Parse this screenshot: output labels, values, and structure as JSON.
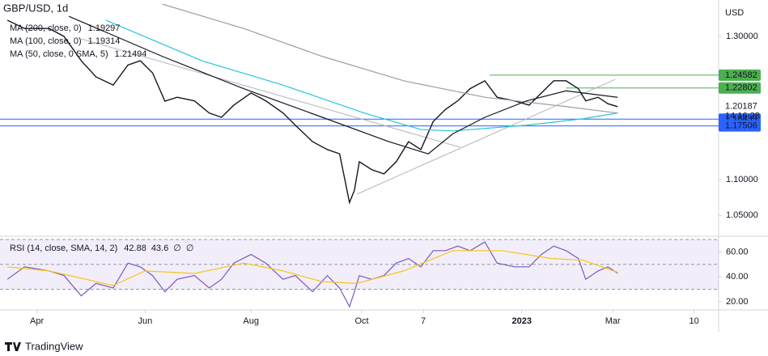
{
  "chart_data": [
    {
      "type": "line",
      "title": "GBP/USD, 1d",
      "currency": "USD",
      "time_to_close": "14:16:28",
      "xlim": [
        7,
        299
      ],
      "ylim": [
        1.0232,
        1.3508
      ],
      "yticks": [
        {
          "value": 1.3,
          "label": "1.30000"
        },
        {
          "value": 1.1,
          "label": "1.10000"
        },
        {
          "value": 1.05,
          "label": "1.05000"
        }
      ],
      "series": [
        {
          "color": "#131722",
          "x": [
            10,
            17,
            27,
            33,
            40,
            46,
            53,
            59,
            64,
            69,
            74,
            79,
            86,
            92,
            97,
            102,
            109,
            115,
            122,
            127,
            134,
            140,
            145,
            149,
            151,
            153,
            158,
            163,
            168,
            173,
            178,
            183,
            188,
            193,
            198,
            204,
            209,
            216,
            222,
            227,
            232,
            237,
            242,
            245,
            250,
            254,
            258
          ],
          "values": [
            1.3226,
            1.311,
            1.311,
            1.3,
            1.266,
            1.2435,
            1.232,
            1.26,
            1.266,
            1.249,
            1.2096,
            1.215,
            1.21,
            1.193,
            1.187,
            1.204,
            1.221,
            1.21,
            1.193,
            1.176,
            1.153,
            1.142,
            1.136,
            1.068,
            1.085,
            1.125,
            1.114,
            1.108,
            1.125,
            1.153,
            1.142,
            1.181,
            1.198,
            1.21,
            1.227,
            1.238,
            1.215,
            1.21,
            1.204,
            1.221,
            1.238,
            1.238,
            1.227,
            1.21,
            1.215,
            1.206,
            1.20187
          ]
        },
        {
          "name": "MA (200, close, 0)",
          "color": "#9e9e9e",
          "x": [
            73,
            106,
            138,
            171,
            204,
            237,
            258
          ],
          "values": [
            1.345,
            1.311,
            1.272,
            1.238,
            1.215,
            1.202,
            1.19297
          ]
        },
        {
          "name": "MA (100, close, 0)",
          "color": "#26c6da",
          "x": [
            50,
            89,
            122,
            155,
            178,
            191,
            221,
            244,
            258
          ],
          "values": [
            1.3226,
            1.266,
            1.232,
            1.193,
            1.17,
            1.168,
            1.176,
            1.185,
            1.19314
          ]
        },
        {
          "name": "MA (50, close, 0 SMA, 5)",
          "color": "#131722",
          "x": [
            35,
            73,
            106,
            138,
            165,
            181,
            191,
            204,
            221,
            237,
            258
          ],
          "values": [
            1.328,
            1.272,
            1.227,
            1.187,
            1.153,
            1.136,
            1.164,
            1.187,
            1.21,
            1.224,
            1.21494
          ]
        }
      ],
      "levels": [
        {
          "value": 1.24582,
          "color": "#4caf50",
          "from": 206
        },
        {
          "value": 1.22802,
          "color": "#4caf50",
          "from": 237
        },
        {
          "value": 1.18439,
          "color": "#2962ff",
          "from": 7
        },
        {
          "value": 1.17506,
          "color": "#2962ff",
          "from": 7
        }
      ],
      "trendlines": [
        {
          "x": [
            40,
            194
          ],
          "values": [
            1.2966,
            1.1452
          ]
        },
        {
          "x": [
            152,
            257
          ],
          "values": [
            1.0797,
            1.24
          ]
        }
      ]
    },
    {
      "type": "line",
      "title": "RSI (14, close, SMA, 14, 2)",
      "na_marks": [
        "∅",
        "∅"
      ],
      "xlim": [
        7,
        299
      ],
      "ylim": [
        14.7,
        71.3
      ],
      "band": [
        30,
        70
      ],
      "midline": 50,
      "yticks": [
        {
          "value": 60,
          "label": "60.00"
        },
        {
          "value": 40,
          "label": "40.00"
        },
        {
          "value": 20,
          "label": "20.00"
        }
      ],
      "xticks": [
        {
          "value": 22,
          "label": "Apr"
        },
        {
          "value": 66,
          "label": "Jun"
        },
        {
          "value": 109,
          "label": "Aug"
        },
        {
          "value": 154,
          "label": "Oct"
        },
        {
          "value": 179,
          "label": "7"
        },
        {
          "value": 219,
          "label": "2023"
        },
        {
          "value": 256,
          "label": "Mar"
        },
        {
          "value": 289,
          "label": "10"
        }
      ],
      "series": [
        {
          "color": "#7e57c2",
          "x": [
            10,
            17,
            27,
            33,
            40,
            46,
            53,
            59,
            64,
            69,
            74,
            79,
            86,
            92,
            97,
            102,
            109,
            115,
            122,
            127,
            134,
            140,
            145,
            149,
            151,
            153,
            158,
            163,
            168,
            173,
            178,
            183,
            188,
            193,
            198,
            204,
            209,
            216,
            222,
            227,
            232,
            237,
            242,
            245,
            250,
            254,
            258
          ],
          "values": [
            38,
            48,
            44.7,
            41,
            24.7,
            34.7,
            31,
            51,
            48,
            41,
            28,
            38,
            41,
            31,
            38,
            51,
            58,
            51,
            38,
            41,
            28,
            41,
            31,
            16,
            28,
            41,
            38,
            41,
            51,
            54.7,
            48,
            61,
            61,
            64.7,
            61,
            68,
            51,
            48,
            48,
            58,
            64.7,
            61,
            54.7,
            38,
            44.7,
            48,
            42.88
          ]
        },
        {
          "color": "#f5c518",
          "x": [
            10,
            27,
            53,
            66,
            86,
            106,
            122,
            138,
            152,
            171,
            191,
            211,
            231,
            244,
            258
          ],
          "values": [
            48,
            44.7,
            33,
            44.7,
            42.7,
            51,
            44.7,
            36,
            34.7,
            44.7,
            61,
            61,
            54.7,
            53.3,
            43.6
          ]
        }
      ]
    }
  ],
  "footer": {
    "brand": "TradingView"
  }
}
